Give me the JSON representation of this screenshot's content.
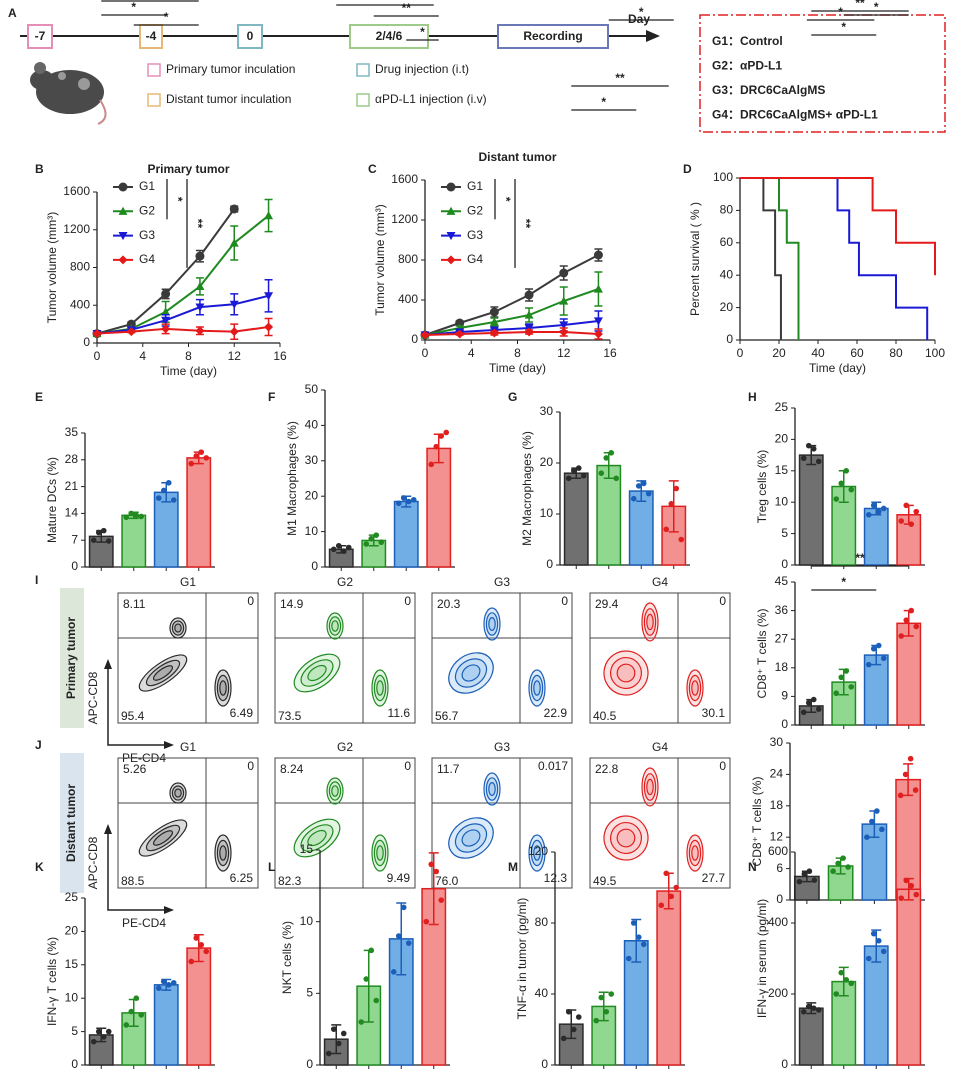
{
  "timeline": {
    "panel": "A",
    "axis_label": "Day",
    "steps": [
      {
        "label": "-7",
        "color": "#e58fb8"
      },
      {
        "label": "-4",
        "color": "#e8b878"
      },
      {
        "label": "0",
        "color": "#7fb8c0"
      },
      {
        "label": "2/4/6",
        "color": "#9ccc88"
      },
      {
        "label": "Recording",
        "color": "#6a78b8"
      }
    ],
    "legend": [
      {
        "label": "Primary tumor inculation",
        "color": "#e58fb8"
      },
      {
        "label": "Distant tumor inculation",
        "color": "#e8b878"
      },
      {
        "label": "Drug injection (i.t)",
        "color": "#7fb8c0"
      },
      {
        "label": "αPD-L1 injection (i.v)",
        "color": "#9ccc88"
      }
    ]
  },
  "groups": {
    "border": "#e02020",
    "items": [
      {
        "label": "G1：Control",
        "color": "#111111"
      },
      {
        "label": "G2：αPD-L1",
        "color": "#1f8a1f"
      },
      {
        "label": "G3：DRC6CaAlgMS",
        "color": "#1a1ad6"
      },
      {
        "label": "G4：DRC6CaAlgMS+ αPD-L1",
        "color": "#e41a1a"
      }
    ]
  },
  "bar_fill": [
    "#707070",
    "#90d890",
    "#72aee6",
    "#f39090"
  ],
  "bar_edge": [
    "#2b2b2b",
    "#218a21",
    "#1c5fb8",
    "#e02020"
  ],
  "flow": [
    {
      "panel": "I",
      "row_label": "Primary tumor",
      "row_color": "#3d7a2b",
      "y_axis": "APC-CD8",
      "x_axis": "PE-CD4",
      "plots": [
        {
          "title": "G1",
          "quadrants": [
            "8.11",
            "0",
            "95.4",
            "6.49"
          ]
        },
        {
          "title": "G2",
          "quadrants": [
            "14.9",
            "0",
            "73.5",
            "11.6"
          ]
        },
        {
          "title": "G3",
          "quadrants": [
            "20.3",
            "0",
            "56.7",
            "22.9"
          ]
        },
        {
          "title": "G4",
          "quadrants": [
            "29.4",
            "0",
            "40.5",
            "30.1"
          ]
        }
      ]
    },
    {
      "panel": "J",
      "row_label": "Distant tumor",
      "row_color": "#2c6aa8",
      "y_axis": "APC-CD8",
      "x_axis": "PE-CD4",
      "plots": [
        {
          "title": "G1",
          "quadrants": [
            "5.26",
            "0",
            "88.5",
            "6.25"
          ]
        },
        {
          "title": "G2",
          "quadrants": [
            "8.24",
            "0",
            "82.3",
            "9.49"
          ]
        },
        {
          "title": "G3",
          "quadrants": [
            "11.7",
            "0.017",
            "76.0",
            "12.3"
          ]
        },
        {
          "title": "G4",
          "quadrants": [
            "22.8",
            "0",
            "49.5",
            "27.7"
          ]
        }
      ]
    }
  ],
  "chart_data": [
    {
      "type": "line",
      "panel": "B",
      "title": "Primary tumor",
      "title_color": "#1f6fc0",
      "x_label": "Time (day)",
      "y_label": "Tumor volume (mm³)",
      "x": [
        0,
        3,
        6,
        9,
        12,
        15
      ],
      "xlim": [
        0,
        16
      ],
      "xticks": [
        0,
        4,
        8,
        12,
        16
      ],
      "ylim": [
        0,
        1600
      ],
      "yticks": [
        0,
        400,
        800,
        1200,
        1600
      ],
      "legend": true,
      "series": [
        {
          "name": "G1",
          "color": "#3a3a3a",
          "values": [
            100,
            200,
            520,
            920,
            1420,
            null
          ],
          "errors": [
            10,
            20,
            50,
            60,
            30,
            null
          ]
        },
        {
          "name": "G2",
          "color": "#1f8a1f",
          "values": [
            100,
            150,
            330,
            600,
            1060,
            1350
          ],
          "errors": [
            10,
            20,
            110,
            90,
            180,
            170
          ]
        },
        {
          "name": "G3",
          "color": "#1a1ad6",
          "values": [
            100,
            140,
            240,
            380,
            410,
            500
          ],
          "errors": [
            10,
            20,
            60,
            80,
            110,
            170
          ]
        },
        {
          "name": "G4",
          "color": "#e41a1a",
          "values": [
            100,
            120,
            150,
            130,
            120,
            170
          ],
          "errors": [
            10,
            10,
            50,
            40,
            80,
            90
          ]
        }
      ],
      "sig": [
        {
          "between": [
            0,
            1
          ],
          "label": "*"
        },
        {
          "between": [
            0,
            3
          ],
          "label": "**"
        }
      ]
    },
    {
      "type": "line",
      "panel": "C",
      "title": "Distant tumor",
      "title_color": "#5a8a23",
      "x_label": "Time (day)",
      "y_label": "Tumor volume (mm³)",
      "x": [
        0,
        3,
        6,
        9,
        12,
        15
      ],
      "xlim": [
        0,
        16
      ],
      "xticks": [
        0,
        4,
        8,
        12,
        16
      ],
      "ylim": [
        0,
        1600
      ],
      "yticks": [
        0,
        400,
        800,
        1200,
        1600
      ],
      "legend": true,
      "series": [
        {
          "name": "G1",
          "color": "#3a3a3a",
          "values": [
            50,
            170,
            280,
            450,
            670,
            850
          ],
          "errors": [
            10,
            20,
            50,
            60,
            70,
            60
          ]
        },
        {
          "name": "G2",
          "color": "#1f8a1f",
          "values": [
            50,
            120,
            180,
            250,
            390,
            510
          ],
          "errors": [
            10,
            20,
            40,
            70,
            140,
            170
          ]
        },
        {
          "name": "G3",
          "color": "#1a1ad6",
          "values": [
            50,
            80,
            100,
            120,
            150,
            190
          ],
          "errors": [
            10,
            10,
            20,
            40,
            60,
            100
          ]
        },
        {
          "name": "G4",
          "color": "#e41a1a",
          "values": [
            50,
            60,
            70,
            80,
            80,
            60
          ],
          "errors": [
            10,
            10,
            20,
            20,
            40,
            50
          ]
        }
      ],
      "sig": [
        {
          "between": [
            0,
            1
          ],
          "label": "*"
        },
        {
          "between": [
            0,
            3
          ],
          "label": "**"
        }
      ]
    },
    {
      "type": "step",
      "panel": "D",
      "x_label": "Time (day)",
      "y_label": "Percent survival ( % )",
      "xlim": [
        0,
        100
      ],
      "xticks": [
        0,
        20,
        40,
        60,
        80,
        100
      ],
      "ylim": [
        0,
        100
      ],
      "yticks": [
        0,
        20,
        40,
        60,
        80,
        100
      ],
      "series": [
        {
          "color": "#3a3a3a",
          "x": [
            0,
            12,
            18,
            21
          ],
          "values": [
            100,
            80,
            40,
            0
          ]
        },
        {
          "color": "#1f8a1f",
          "x": [
            0,
            20,
            24,
            30
          ],
          "values": [
            100,
            80,
            60,
            0
          ]
        },
        {
          "color": "#1a1ad6",
          "x": [
            0,
            50,
            56,
            61,
            80,
            96
          ],
          "values": [
            100,
            80,
            60,
            40,
            20,
            0
          ]
        },
        {
          "color": "#e41a1a",
          "x": [
            0,
            68,
            80,
            100
          ],
          "values": [
            100,
            80,
            60,
            40
          ]
        }
      ]
    },
    {
      "type": "bar",
      "panel": "E",
      "y_label": "Mature DCs (%)",
      "ylim": [
        0,
        35
      ],
      "yticks": [
        0,
        7,
        14,
        21,
        28,
        35
      ],
      "values": [
        8,
        13.5,
        19.5,
        28.5
      ],
      "errors": [
        1.5,
        0.8,
        2.5,
        1.5
      ],
      "points": [
        [
          7,
          9,
          9.5,
          6.8
        ],
        [
          13,
          14,
          13.5,
          13.2
        ],
        [
          18,
          20,
          22,
          17.5
        ],
        [
          27,
          29,
          30,
          28.5
        ]
      ],
      "sig": [
        {
          "between": [
            0,
            3
          ],
          "label": "**"
        },
        {
          "between": [
            1,
            3
          ],
          "label": "*"
        }
      ]
    },
    {
      "type": "bar",
      "panel": "F",
      "y_label": "M1 Macrophages (%)",
      "ylim": [
        0,
        50
      ],
      "yticks": [
        0,
        10,
        20,
        30,
        40,
        50
      ],
      "values": [
        5,
        7.5,
        18.5,
        33.5
      ],
      "errors": [
        1,
        1.5,
        1.5,
        4
      ],
      "points": [
        [
          5,
          6,
          4.5,
          5.5
        ],
        [
          6.5,
          8,
          9,
          7
        ],
        [
          18,
          19.5,
          18.5,
          19
        ],
        [
          29,
          34,
          37,
          38
        ]
      ],
      "sig": [
        {
          "between": [
            1,
            3
          ],
          "label": "**"
        },
        {
          "between": [
            2,
            3
          ],
          "label": "*"
        }
      ]
    },
    {
      "type": "bar",
      "panel": "G",
      "y_label": "M2 Macrophages (%)",
      "ylim": [
        0,
        30
      ],
      "yticks": [
        0,
        10,
        20,
        30
      ],
      "values": [
        18,
        19.5,
        14.5,
        11.5
      ],
      "errors": [
        1,
        2.5,
        2,
        5
      ],
      "points": [
        [
          17,
          18.5,
          19,
          17.5
        ],
        [
          18,
          21,
          22,
          17
        ],
        [
          13,
          15.5,
          16,
          14
        ],
        [
          7,
          12,
          15,
          5
        ]
      ],
      "sig": [
        {
          "between": [
            0,
            3
          ],
          "label": "*"
        },
        {
          "between": [
            1,
            3
          ],
          "label": "*"
        }
      ]
    },
    {
      "type": "bar",
      "panel": "H",
      "y_label": "Treg cells (%)",
      "ylim": [
        0,
        25
      ],
      "yticks": [
        0,
        5,
        10,
        15,
        20,
        25
      ],
      "values": [
        17.5,
        12.5,
        9,
        8
      ],
      "errors": [
        1.5,
        2.5,
        1,
        1.5
      ],
      "points": [
        [
          17,
          19,
          18.5,
          16.5
        ],
        [
          10.5,
          13,
          15,
          12
        ],
        [
          8,
          9.5,
          8.5,
          9
        ],
        [
          7,
          9.5,
          6.5,
          8.5
        ]
      ],
      "sig": [
        {
          "between": [
            0,
            3
          ],
          "label": "*"
        },
        {
          "between": [
            1,
            3
          ],
          "label": "*"
        }
      ]
    },
    {
      "type": "bar",
      "y_label": "CD8⁺ T cells (%)",
      "ylim": [
        0,
        45
      ],
      "yticks": [
        0,
        9,
        18,
        27,
        36,
        45
      ],
      "values": [
        6,
        13.5,
        22,
        32
      ],
      "errors": [
        2,
        4,
        3,
        4
      ],
      "points": [
        [
          4,
          7,
          8,
          5
        ],
        [
          10,
          15,
          17,
          12
        ],
        [
          19,
          24,
          25,
          21
        ],
        [
          28,
          33,
          36,
          31
        ]
      ],
      "sig": [
        {
          "between": [
            0,
            3
          ],
          "label": "**"
        },
        {
          "between": [
            0,
            2
          ],
          "label": "*"
        }
      ]
    },
    {
      "type": "bar",
      "y_label": "CD8⁺ T cells (%)",
      "ylim": [
        0,
        30
      ],
      "yticks": [
        0,
        6,
        12,
        18,
        24,
        30
      ],
      "values": [
        4.5,
        6.5,
        14.5,
        23
      ],
      "errors": [
        1,
        1.5,
        2.5,
        3
      ],
      "points": [
        [
          3.5,
          5,
          5.5,
          3.8
        ],
        [
          5.5,
          7,
          8,
          6.3
        ],
        [
          12,
          15,
          17,
          13.5
        ],
        [
          20,
          24,
          27,
          21
        ]
      ],
      "sig": [
        {
          "between": [
            0,
            3
          ],
          "label": "**"
        },
        {
          "between": [
            0,
            2
          ],
          "label": "*"
        }
      ]
    },
    {
      "type": "bar",
      "panel": "K",
      "y_label": "IFN-γ T cells (%)",
      "ylim": [
        0,
        25
      ],
      "yticks": [
        0,
        5,
        10,
        15,
        20,
        25
      ],
      "values": [
        4.5,
        7.8,
        12,
        17.5
      ],
      "errors": [
        1,
        2,
        0.8,
        2
      ],
      "points": [
        [
          3.5,
          5,
          4.2,
          5
        ],
        [
          6,
          8,
          10,
          7.5
        ],
        [
          11.5,
          12.5,
          12,
          12.3
        ],
        [
          15.5,
          19,
          18,
          17
        ]
      ],
      "sig": [
        {
          "between": [
            0,
            3
          ],
          "label": "*"
        },
        {
          "between": [
            0,
            2
          ],
          "label": "*"
        }
      ]
    },
    {
      "type": "bar",
      "panel": "L",
      "y_label": "NKT cells (%)",
      "ylim": [
        0,
        15
      ],
      "yticks": [
        0,
        5,
        10,
        15
      ],
      "values": [
        1.8,
        5.5,
        8.8,
        12.3
      ],
      "errors": [
        1,
        2.5,
        2.5,
        2.5
      ],
      "points": [
        [
          0.8,
          2.5,
          1.5,
          2.2
        ],
        [
          3,
          6,
          8,
          4.5
        ],
        [
          6.5,
          9,
          11,
          8.5
        ],
        [
          10,
          14,
          13.5,
          11.5
        ]
      ],
      "sig": [
        {
          "between": [
            0,
            3
          ],
          "label": "*"
        }
      ]
    },
    {
      "type": "bar",
      "panel": "M",
      "y_label": "TNF-α in tumor (pg/ml)",
      "ylim": [
        0,
        120
      ],
      "yticks": [
        0,
        40,
        80,
        120
      ],
      "values": [
        23,
        33,
        70,
        98
      ],
      "errors": [
        8,
        8,
        12,
        10
      ],
      "points": [
        [
          15,
          30,
          20,
          27
        ],
        [
          25,
          38,
          30,
          40
        ],
        [
          60,
          80,
          72,
          68
        ],
        [
          90,
          108,
          95,
          100
        ]
      ],
      "sig": [
        {
          "between": [
            0,
            3
          ],
          "label": "**"
        },
        {
          "between": [
            0,
            2
          ],
          "label": "*"
        }
      ]
    },
    {
      "type": "bar",
      "panel": "N",
      "y_label": "IFN-γ in serum (pg/ml)",
      "ylim": [
        0,
        600
      ],
      "yticks": [
        0,
        200,
        400,
        600
      ],
      "values": [
        160,
        235,
        335,
        495
      ],
      "errors": [
        15,
        40,
        45,
        30
      ],
      "points": [
        [
          150,
          165,
          160,
          155
        ],
        [
          200,
          260,
          240,
          230
        ],
        [
          300,
          370,
          350,
          320
        ],
        [
          470,
          520,
          505,
          480
        ]
      ],
      "sig": [
        {
          "between": [
            0,
            3
          ],
          "label": "**"
        },
        {
          "between": [
            0,
            2
          ],
          "label": "*"
        }
      ]
    }
  ]
}
